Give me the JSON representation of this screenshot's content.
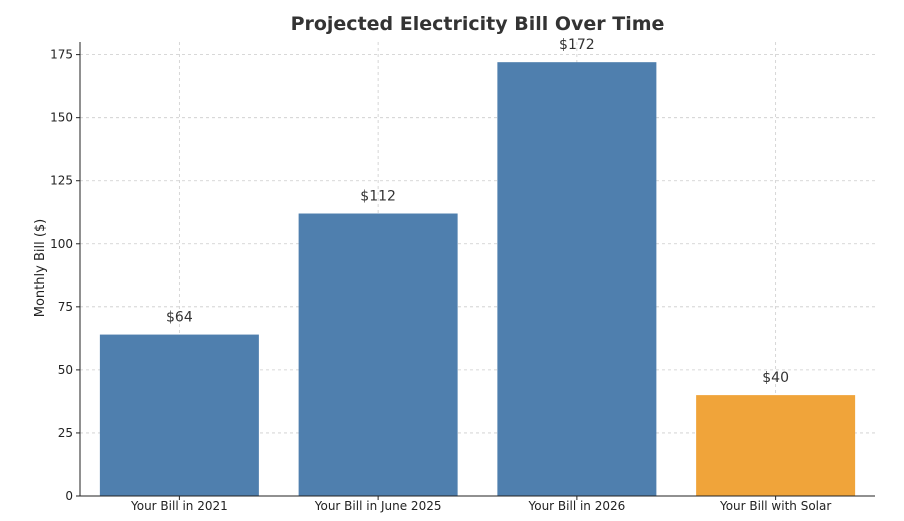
{
  "chart_data": {
    "type": "bar",
    "title": "Projected Electricity Bill Over Time",
    "xlabel": "",
    "ylabel": "Monthly Bill ($)",
    "ylim": [
      0,
      180
    ],
    "yticks": [
      0,
      25,
      50,
      75,
      100,
      125,
      150,
      175
    ],
    "categories": [
      "Your Bill in 2021",
      "Your Bill in June 2025",
      "Your Bill in 2026",
      "Your Bill with Solar"
    ],
    "values": [
      64,
      112,
      172,
      40
    ],
    "data_labels": [
      "$64",
      "$112",
      "$172",
      "$40"
    ],
    "colors": [
      "#4f7fae",
      "#4f7fae",
      "#4f7fae",
      "#f0a43a"
    ],
    "grid": true,
    "legend": "none"
  }
}
